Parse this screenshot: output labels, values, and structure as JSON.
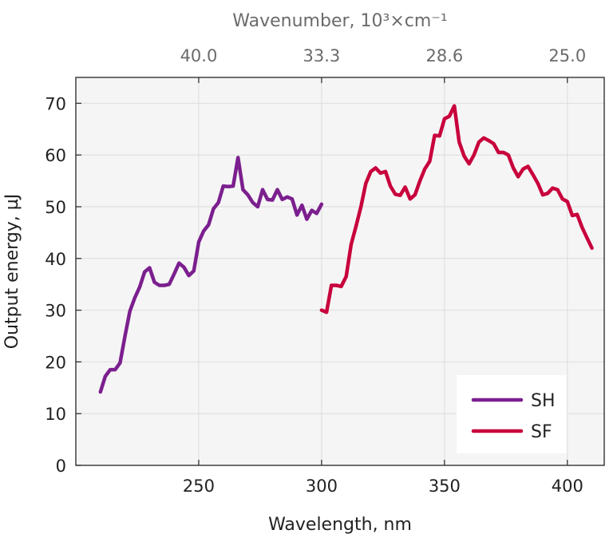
{
  "chart_data": {
    "type": "line",
    "xlabel": "Wavelength, nm",
    "ylabel": "Output energy, µJ",
    "top_axis_label": "Wavenumber, 10³×cm⁻¹",
    "xlim": [
      200,
      415
    ],
    "ylim": [
      0,
      75
    ],
    "x_ticks": [
      "250",
      "300",
      "350",
      "400"
    ],
    "y_ticks": [
      "0",
      "10",
      "20",
      "30",
      "40",
      "50",
      "60",
      "70"
    ],
    "top_ticks": [
      {
        "label": "40.0",
        "wavelength": 250
      },
      {
        "label": "33.3",
        "wavelength": 300
      },
      {
        "label": "28.6",
        "wavelength": 350
      },
      {
        "label": "25.0",
        "wavelength": 400
      }
    ],
    "grid": true,
    "legend_position": "bottom-right",
    "series": [
      {
        "name": "SH",
        "color": "#7b1f8e",
        "x": [
          210,
          212,
          214,
          216,
          218,
          220,
          222,
          224,
          226,
          228,
          230,
          232,
          234,
          236,
          238,
          240,
          242,
          244,
          246,
          248,
          250,
          252,
          254,
          256,
          258,
          260,
          262,
          264,
          266,
          268,
          270,
          272,
          274,
          276,
          278,
          280,
          282,
          284,
          286,
          288,
          290,
          292,
          294,
          296,
          298,
          300
        ],
        "y": [
          14.2,
          17.2,
          18.5,
          18.5,
          19.8,
          25.0,
          29.8,
          32.4,
          34.5,
          37.4,
          38.2,
          35.4,
          34.8,
          34.8,
          35.0,
          37.0,
          39.1,
          38.3,
          36.7,
          37.6,
          43.2,
          45.3,
          46.5,
          49.6,
          50.8,
          54.0,
          53.9,
          54.0,
          59.5,
          53.3,
          52.3,
          50.8,
          50.0,
          53.3,
          51.4,
          51.3,
          53.3,
          51.4,
          51.9,
          51.5,
          48.4,
          50.3,
          47.6,
          49.3,
          48.7,
          50.5
        ]
      },
      {
        "name": "SF",
        "color": "#c8003c",
        "x": [
          300,
          302,
          304,
          306,
          308,
          310,
          312,
          314,
          316,
          318,
          320,
          322,
          324,
          326,
          328,
          330,
          332,
          334,
          336,
          338,
          340,
          342,
          344,
          346,
          348,
          350,
          352,
          354,
          356,
          358,
          360,
          362,
          364,
          366,
          368,
          370,
          372,
          374,
          376,
          378,
          380,
          382,
          384,
          386,
          388,
          390,
          392,
          394,
          396,
          398,
          400,
          402,
          404,
          406,
          408,
          410
        ],
        "y": [
          30.0,
          29.6,
          34.8,
          34.8,
          34.6,
          36.5,
          42.7,
          46.2,
          50.0,
          54.5,
          56.8,
          57.5,
          56.5,
          56.8,
          54.0,
          52.4,
          52.2,
          53.8,
          51.5,
          52.3,
          55.0,
          57.3,
          58.8,
          63.8,
          63.7,
          67.0,
          67.5,
          69.5,
          62.5,
          59.8,
          58.3,
          60.0,
          62.5,
          63.3,
          62.8,
          62.2,
          60.5,
          60.5,
          60.0,
          57.5,
          55.8,
          57.3,
          57.8,
          56.2,
          54.5,
          52.3,
          52.6,
          53.6,
          53.3,
          51.5,
          51.0,
          48.3,
          48.5,
          46.0,
          44.0,
          42.0
        ]
      }
    ]
  }
}
